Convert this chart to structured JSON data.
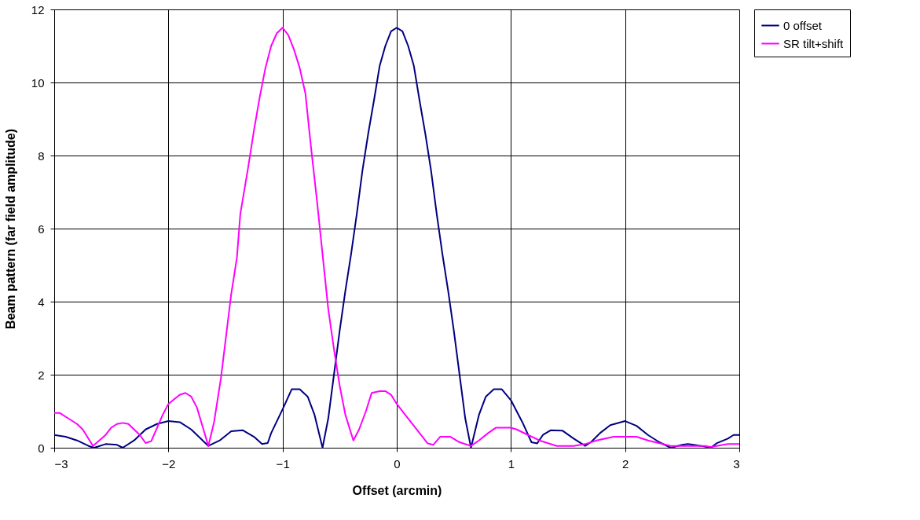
{
  "chart_data": {
    "type": "line",
    "xlabel": "Offset (arcmin)",
    "ylabel": "Beam pattern (far field amplitude)",
    "xlim": [
      -3,
      3
    ],
    "xticks": [
      -3,
      -2,
      -1,
      0,
      1,
      2,
      3
    ],
    "ylim": [
      0,
      12
    ],
    "yticks": [
      0,
      2,
      4,
      6,
      8,
      10,
      12
    ],
    "grid": true,
    "legend": "right",
    "marker": "none",
    "line_style": "solid",
    "series": [
      {
        "name": "0 offset",
        "color": "#000080",
        "x": [
          -3,
          -2.9,
          -2.8,
          -2.7,
          -2.65,
          -2.55,
          -2.45,
          -2.4,
          -2.3,
          -2.2,
          -2.1,
          -2.0,
          -1.9,
          -1.8,
          -1.7,
          -1.65,
          -1.55,
          -1.45,
          -1.35,
          -1.25,
          -1.18,
          -1.13,
          -1.1,
          -1.0,
          -0.92,
          -0.85,
          -0.78,
          -0.72,
          -0.65,
          -0.6,
          -0.55,
          -0.5,
          -0.45,
          -0.4,
          -0.35,
          -0.3,
          -0.25,
          -0.2,
          -0.15,
          -0.1,
          -0.05,
          0,
          0.05,
          0.1,
          0.15,
          0.2,
          0.25,
          0.3,
          0.35,
          0.4,
          0.45,
          0.5,
          0.55,
          0.6,
          0.65,
          0.72,
          0.78,
          0.85,
          0.92,
          1.0,
          1.1,
          1.18,
          1.23,
          1.28,
          1.35,
          1.45,
          1.55,
          1.65,
          1.7,
          1.78,
          1.87,
          2.0,
          2.1,
          2.2,
          2.3,
          2.4,
          2.5,
          2.55,
          2.6,
          2.7,
          2.75,
          2.8,
          2.9,
          2.95,
          3.0
        ],
        "values": [
          0.35,
          0.3,
          0.2,
          0.05,
          0,
          0.1,
          0.08,
          0,
          0.2,
          0.5,
          0.65,
          0.73,
          0.7,
          0.5,
          0.2,
          0.05,
          0.2,
          0.45,
          0.48,
          0.3,
          0.1,
          0.13,
          0.4,
          1.05,
          1.6,
          1.6,
          1.4,
          0.9,
          0,
          0.8,
          2.0,
          3.2,
          4.3,
          5.3,
          6.4,
          7.6,
          8.6,
          9.5,
          10.45,
          11.0,
          11.4,
          11.5,
          11.4,
          11.0,
          10.45,
          9.5,
          8.6,
          7.6,
          6.4,
          5.3,
          4.3,
          3.2,
          2.0,
          0.8,
          0,
          0.9,
          1.4,
          1.6,
          1.6,
          1.3,
          0.7,
          0.15,
          0.12,
          0.35,
          0.48,
          0.47,
          0.25,
          0.05,
          0.15,
          0.4,
          0.62,
          0.73,
          0.6,
          0.35,
          0.15,
          0,
          0.08,
          0.1,
          0.08,
          0.03,
          0,
          0.12,
          0.25,
          0.35,
          0.35
        ]
      },
      {
        "name": "SR tilt+shift",
        "color": "#ff00ff",
        "x": [
          -3,
          -2.95,
          -2.9,
          -2.8,
          -2.75,
          -2.66,
          -2.55,
          -2.5,
          -2.45,
          -2.4,
          -2.35,
          -2.3,
          -2.25,
          -2.2,
          -2.15,
          -2.05,
          -2.0,
          -1.9,
          -1.85,
          -1.8,
          -1.75,
          -1.65,
          -1.6,
          -1.54,
          -1.45,
          -1.4,
          -1.37,
          -1.3,
          -1.25,
          -1.2,
          -1.15,
          -1.1,
          -1.05,
          -1.0,
          -0.95,
          -0.9,
          -0.85,
          -0.8,
          -0.75,
          -0.7,
          -0.65,
          -0.6,
          -0.55,
          -0.5,
          -0.45,
          -0.38,
          -0.33,
          -0.27,
          -0.22,
          -0.15,
          -0.1,
          -0.05,
          0,
          0.1,
          0.2,
          0.27,
          0.32,
          0.38,
          0.47,
          0.55,
          0.65,
          0.72,
          0.8,
          0.87,
          1.0,
          1.05,
          1.15,
          1.25,
          1.4,
          1.55,
          1.65,
          1.75,
          1.9,
          2.1,
          2.2,
          2.4,
          2.7,
          2.75,
          2.9,
          3.0
        ],
        "values": [
          0.95,
          0.95,
          0.85,
          0.65,
          0.5,
          0.05,
          0.35,
          0.55,
          0.65,
          0.68,
          0.65,
          0.5,
          0.35,
          0.13,
          0.18,
          0.9,
          1.2,
          1.45,
          1.5,
          1.4,
          1.1,
          0.05,
          0.7,
          1.9,
          4.2,
          5.2,
          6.4,
          7.7,
          8.7,
          9.6,
          10.4,
          11.0,
          11.35,
          11.5,
          11.3,
          10.9,
          10.4,
          9.7,
          8.2,
          6.8,
          5.3,
          3.8,
          2.7,
          1.7,
          0.9,
          0.2,
          0.5,
          1.0,
          1.5,
          1.55,
          1.55,
          1.45,
          1.2,
          0.8,
          0.4,
          0.12,
          0.08,
          0.3,
          0.3,
          0.15,
          0.05,
          0.2,
          0.4,
          0.55,
          0.55,
          0.5,
          0.35,
          0.2,
          0.05,
          0.05,
          0.1,
          0.2,
          0.3,
          0.3,
          0.2,
          0.05,
          0.05,
          0.02,
          0.1,
          0.1
        ]
      }
    ]
  }
}
